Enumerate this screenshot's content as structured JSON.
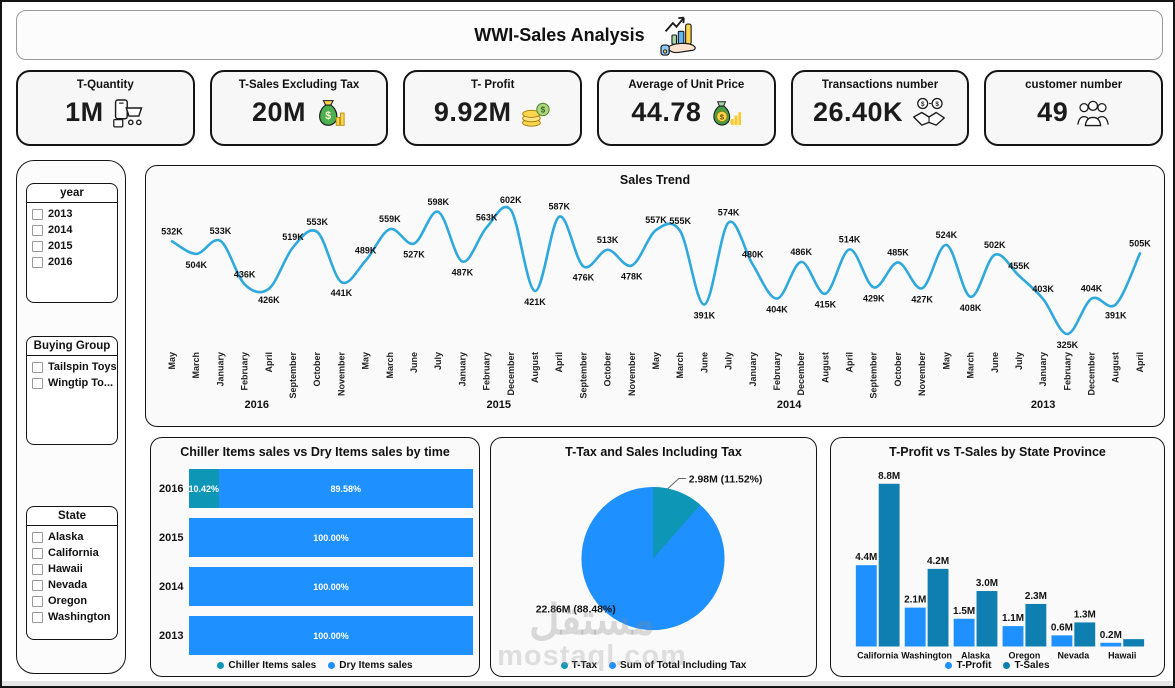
{
  "header": {
    "title": "WWI-Sales Analysis"
  },
  "kpis": [
    {
      "title": "T-Quantity",
      "value": "1M",
      "icon": "shopping-cart"
    },
    {
      "title": "T-Sales Excluding Tax",
      "value": "20M",
      "icon": "money-bag"
    },
    {
      "title": "T- Profit",
      "value": "9.92M",
      "icon": "coins"
    },
    {
      "title": "Average of Unit Price",
      "value": "44.78",
      "icon": "money-bag-chart"
    },
    {
      "title": "Transactions number",
      "value": "26.40K",
      "icon": "handshake"
    },
    {
      "title": "customer number",
      "value": "49",
      "icon": "people"
    }
  ],
  "filters": {
    "year": {
      "title": "year",
      "options": [
        "2013",
        "2014",
        "2015",
        "2016"
      ]
    },
    "buying_group": {
      "title": "Buying Group",
      "options": [
        "Tailspin Toys",
        "Wingtip To..."
      ]
    },
    "state": {
      "title": "State",
      "options": [
        "Alaska",
        "California",
        "Hawaii",
        "Nevada",
        "Oregon",
        "Washington"
      ]
    }
  },
  "watermark": {
    "arabic": "مستقل",
    "latin": "mostaql.com"
  },
  "colors": {
    "blue": "#1E90FF",
    "teal": "#0E96B7",
    "teal_dark": "#0E7FB0",
    "line": "#2FA8DC"
  },
  "chart_data": [
    {
      "id": "sales_trend",
      "type": "line",
      "title": "Sales Trend",
      "legend_position": "none",
      "grid": false,
      "y_axis": "hidden",
      "value_suffix": "K",
      "ylim": [
        300,
        650
      ],
      "line_color": "#2FA8DC",
      "months": [
        "May",
        "March",
        "January",
        "February",
        "April",
        "September",
        "October",
        "November",
        "May",
        "March",
        "June",
        "July",
        "January",
        "February",
        "December",
        "August",
        "April",
        "September",
        "October",
        "November",
        "May",
        "March",
        "June",
        "July",
        "January",
        "February",
        "December",
        "August",
        "April",
        "September",
        "October",
        "November",
        "May",
        "March",
        "June",
        "July",
        "January",
        "February",
        "December",
        "August",
        "April"
      ],
      "year_groups": [
        {
          "year": "2016",
          "months": 8
        },
        {
          "year": "2015",
          "months": 12
        },
        {
          "year": "2014",
          "months": 12
        },
        {
          "year": "2013",
          "months": 9
        }
      ],
      "values_k": [
        532,
        504,
        533,
        436,
        426,
        519,
        553,
        441,
        489,
        559,
        527,
        598,
        487,
        563,
        602,
        421,
        587,
        476,
        513,
        478,
        557,
        555,
        391,
        574,
        480,
        404,
        486,
        415,
        514,
        429,
        485,
        427,
        524,
        408,
        502,
        455,
        403,
        325,
        404,
        391,
        505
      ]
    },
    {
      "id": "chiller_vs_dry",
      "type": "bar",
      "orientation": "horizontal-stacked",
      "title": "Chiller Items sales vs Dry Items sales by time",
      "legend_position": "bottom",
      "unit": "%",
      "categories": [
        "2016",
        "2015",
        "2014",
        "2013"
      ],
      "series": [
        {
          "name": "Chiller Items sales",
          "color": "#0E96B7",
          "values": [
            10.42,
            0,
            0,
            0
          ]
        },
        {
          "name": "Dry Items sales",
          "color": "#1E90FF",
          "values": [
            89.58,
            100,
            100,
            100
          ]
        }
      ],
      "labels": [
        [
          "10.42%",
          "89.58%"
        ],
        [
          "",
          "100.00%"
        ],
        [
          "",
          "100.00%"
        ],
        [
          "",
          "100.00%"
        ]
      ]
    },
    {
      "id": "tax_vs_sales_pie",
      "type": "pie",
      "title": "T-Tax and Sales Including Tax",
      "legend_position": "bottom",
      "slices": [
        {
          "name": "T-Tax",
          "percent": 11.52,
          "label": "2.98M (11.52%)",
          "color": "#0E96B7"
        },
        {
          "name": "Sum of Total Including Tax",
          "percent": 88.48,
          "label": "22.86M (88.48%)",
          "color": "#1E90FF"
        }
      ]
    },
    {
      "id": "profit_vs_sales_by_state",
      "type": "bar",
      "orientation": "vertical-grouped",
      "title": "T-Profit vs T-Sales by State Province",
      "legend_position": "bottom",
      "unit": "M",
      "categories": [
        "California",
        "Washington",
        "Alaska",
        "Oregon",
        "Nevada",
        "Hawaii"
      ],
      "series": [
        {
          "name": "T-Profit",
          "color": "#1E90FF",
          "values": [
            4.4,
            2.1,
            1.5,
            1.1,
            0.6,
            0.2
          ],
          "labels": [
            "4.4M",
            "2.1M",
            "1.5M",
            "1.1M",
            "0.6M",
            "0.2M"
          ]
        },
        {
          "name": "T-Sales",
          "color": "#0E7FB0",
          "values": [
            8.8,
            4.2,
            3.0,
            2.3,
            1.3,
            0.4
          ],
          "labels": [
            "8.8M",
            "4.2M",
            "3.0M",
            "2.3M",
            "1.3M",
            ""
          ]
        }
      ]
    }
  ]
}
